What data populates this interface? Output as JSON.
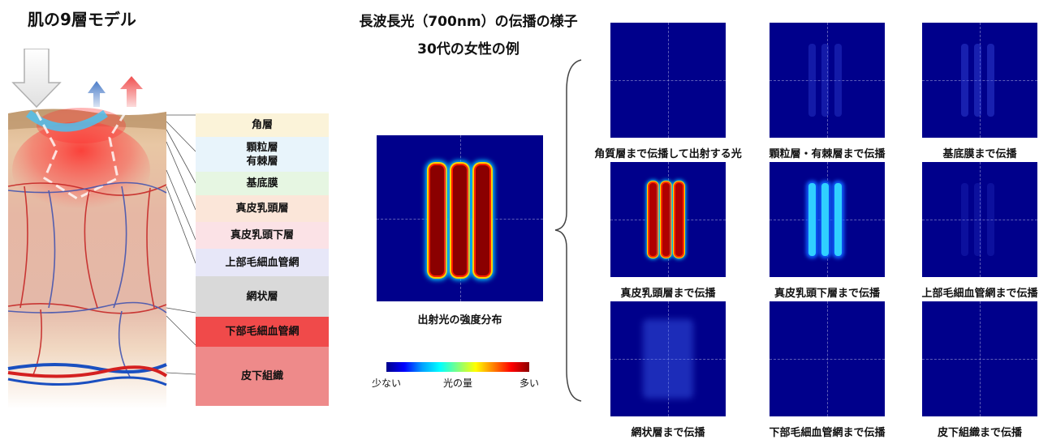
{
  "left_title": "肌の9層モデル",
  "main_title": [
    "長波長光（700nm）の伝播の様子",
    "30代の女性の例"
  ],
  "layers": [
    {
      "label": "角層",
      "color": "#fbf3d9"
    },
    {
      "label": "顆粒層\n有棘層",
      "color": "#e8f4fb"
    },
    {
      "label": "基底膜",
      "color": "#e6f6e2"
    },
    {
      "label": "真皮乳頭層",
      "color": "#fbe6d9"
    },
    {
      "label": "真皮乳頭下層",
      "color": "#fbe2e6"
    },
    {
      "label": "上部毛細血管網",
      "color": "#e7e7f8"
    },
    {
      "label": "網状層",
      "color": "#d9d9d9"
    },
    {
      "label": "下部毛細血管網",
      "color": "#f04a4a"
    },
    {
      "label": "皮下組織",
      "color": "#ee8a8a"
    }
  ],
  "main_panel": {
    "caption": "出射光の強度分布"
  },
  "colorbar": {
    "low": "少ない",
    "mid": "光の量",
    "high": "多い"
  },
  "panels": [
    {
      "caption": "角質層まで伝播して出射する光",
      "intensity": 0.0
    },
    {
      "caption": "顆粒層・有棘層まで伝播",
      "intensity": 0.08
    },
    {
      "caption": "基底膜まで伝播",
      "intensity": 0.1
    },
    {
      "caption": "真皮乳頭層まで伝播",
      "intensity": 1.0
    },
    {
      "caption": "真皮乳頭下層まで伝播",
      "intensity": 0.45
    },
    {
      "caption": "上部毛細血管網まで伝播",
      "intensity": 0.05
    },
    {
      "caption": "網状層まで伝播",
      "intensity": 0.18
    },
    {
      "caption": "下部毛細血管網まで伝播",
      "intensity": 0.0
    },
    {
      "caption": "皮下組織まで伝播",
      "intensity": 0.0
    }
  ]
}
